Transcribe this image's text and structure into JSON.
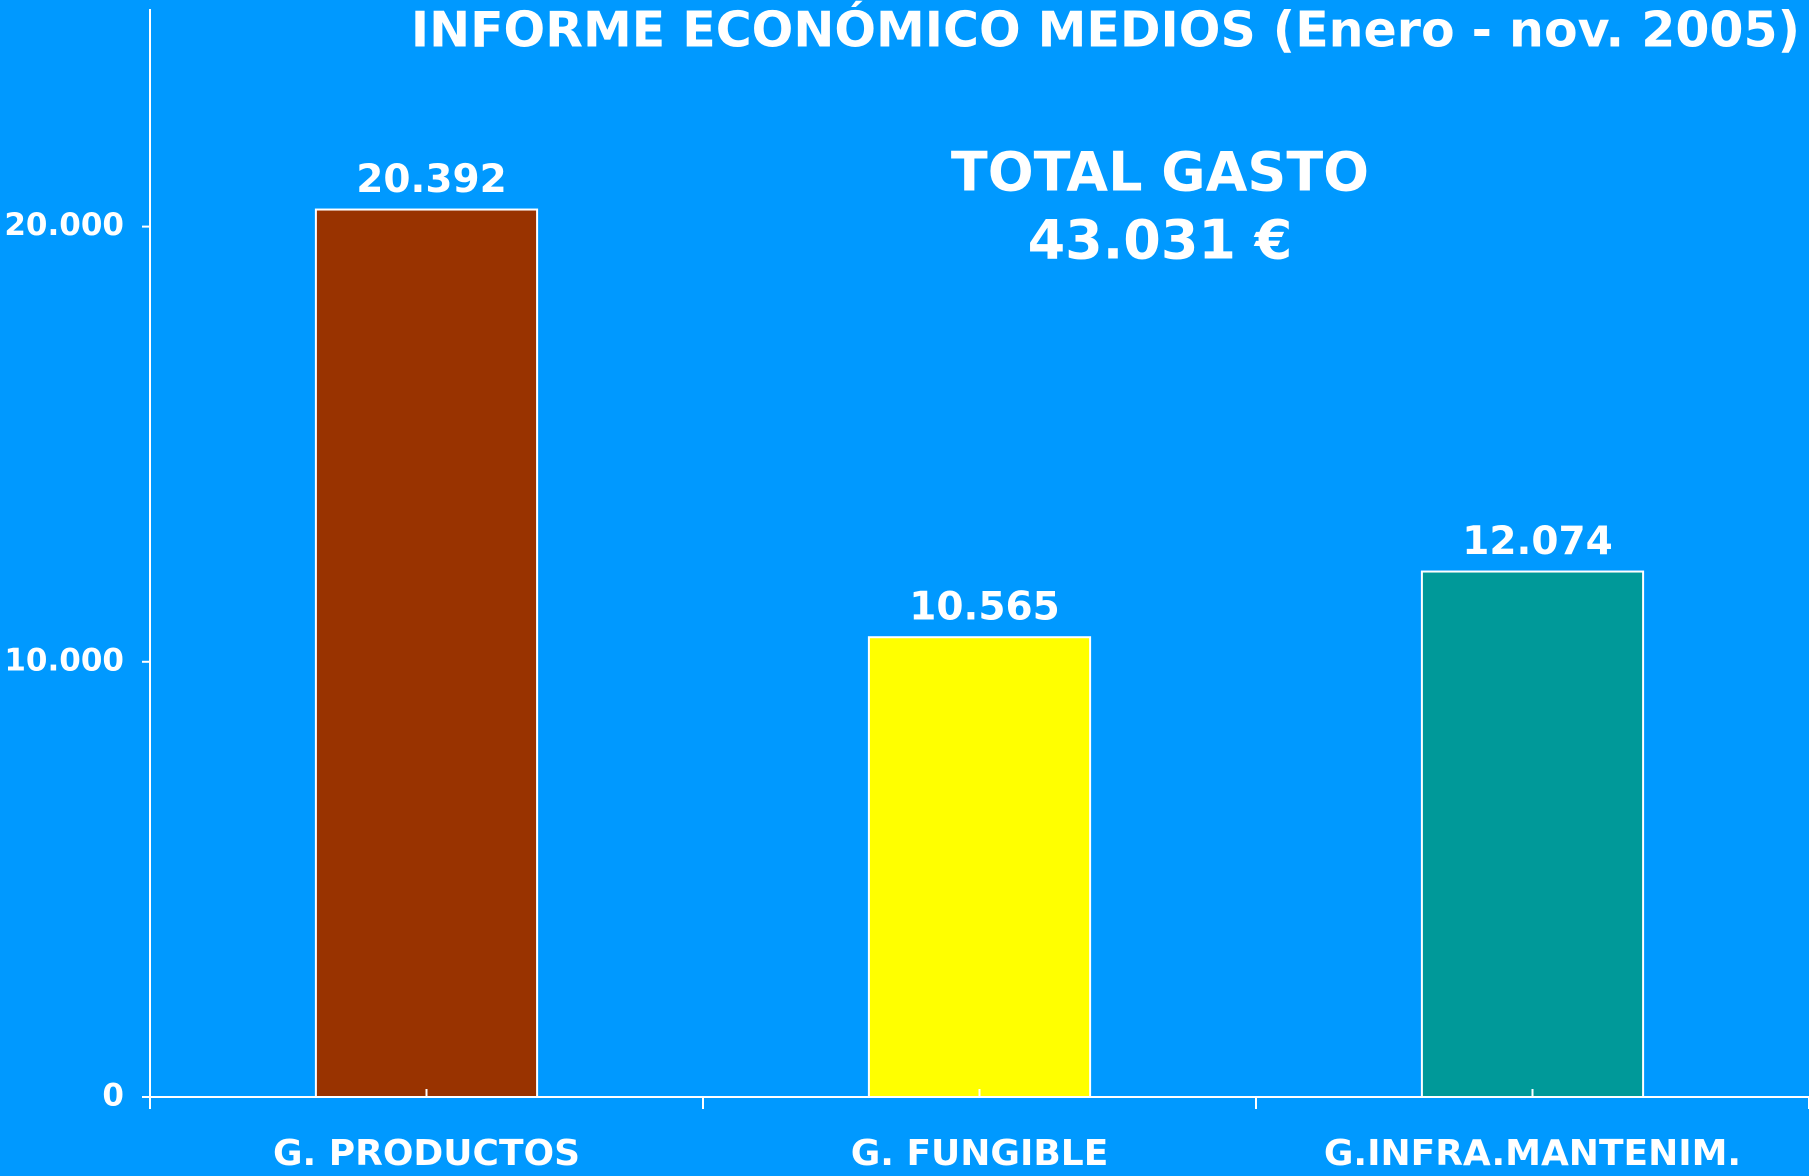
{
  "chart_data": {
    "type": "bar",
    "title": "INFORME ECONÓMICO MEDIOS (Enero - nov. 2005)",
    "annotations": [
      "TOTAL GASTO",
      "43.031 €"
    ],
    "categories": [
      "G. PRODUCTOS",
      "G. FUNGIBLE",
      "G.INFRA.MANTENIM."
    ],
    "values": [
      20392,
      10565,
      12074
    ],
    "value_labels": [
      "20.392",
      "10.565",
      "12.074"
    ],
    "colors": [
      "#993300",
      "#ffff00",
      "#009999"
    ],
    "ylim": [
      0,
      25000
    ],
    "yticks": [
      0,
      {
        "value": 10000,
        "label": "10.000"
      },
      {
        "value": 20000,
        "label": "20.000"
      }
    ],
    "grid": false
  }
}
